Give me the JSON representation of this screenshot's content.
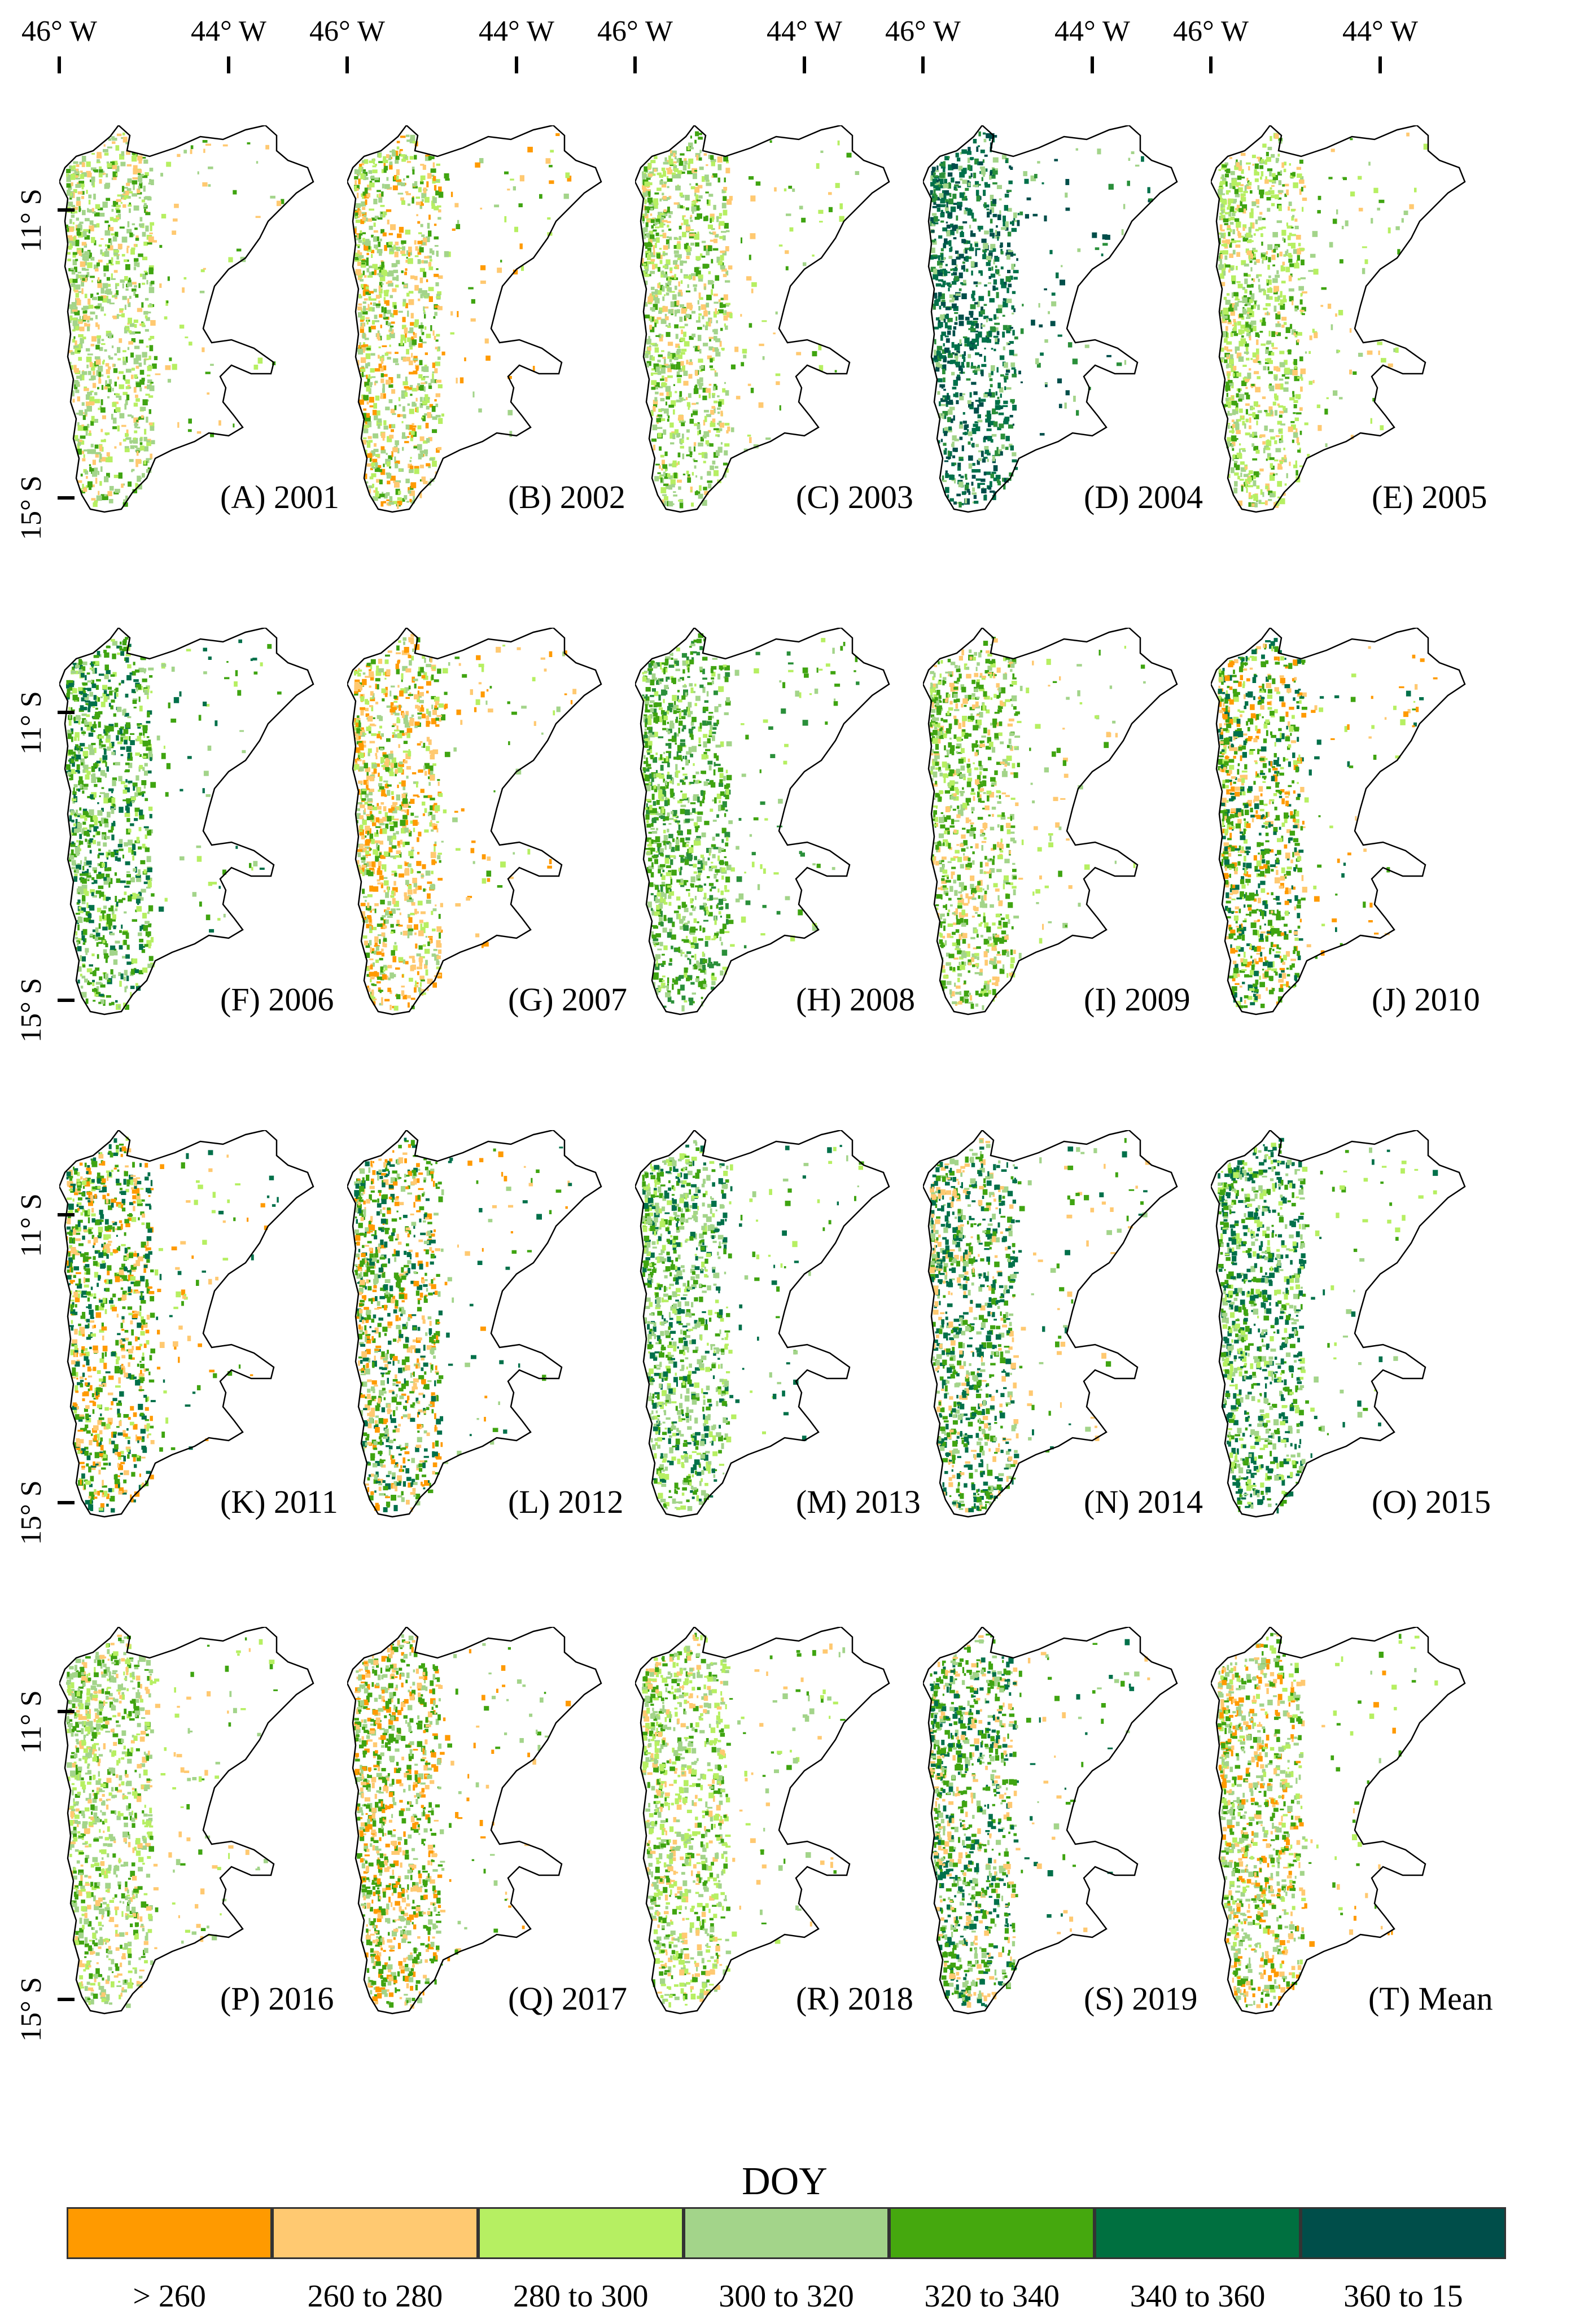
{
  "figure": {
    "top_axis_ticks": [
      "46° W",
      "44° W"
    ],
    "left_axis_ticks": [
      "11° S",
      "15° S"
    ],
    "panels": [
      {
        "label": "(A) 2001",
        "palette": [
          "#a3d48a",
          "#b6ef62",
          "#ffc971",
          "#3fa411"
        ]
      },
      {
        "label": "(B) 2002",
        "palette": [
          "#a3d48a",
          "#b6ef62",
          "#ffc971",
          "#3fa411",
          "#ff9a00"
        ]
      },
      {
        "label": "(C) 2003",
        "palette": [
          "#a3d48a",
          "#b6ef62",
          "#3fa411",
          "#ffc971"
        ]
      },
      {
        "label": "(D) 2004",
        "palette": [
          "#00704a",
          "#004e4a",
          "#2a8f3a",
          "#a3d48a"
        ]
      },
      {
        "label": "(E) 2005",
        "palette": [
          "#b6ef62",
          "#a3d48a",
          "#3fa411",
          "#ffc971"
        ]
      },
      {
        "label": "(F) 2006",
        "palette": [
          "#3fa411",
          "#00704a",
          "#a3d48a",
          "#b6ef62"
        ]
      },
      {
        "label": "(G) 2007",
        "palette": [
          "#ffc971",
          "#ff9a00",
          "#a3d48a",
          "#b6ef62",
          "#3fa411"
        ]
      },
      {
        "label": "(H) 2008",
        "palette": [
          "#3fa411",
          "#2a8f3a",
          "#a3d48a",
          "#b6ef62"
        ]
      },
      {
        "label": "(I) 2009",
        "palette": [
          "#3fa411",
          "#a3d48a",
          "#b6ef62",
          "#ffc971"
        ]
      },
      {
        "label": "(J) 2010",
        "palette": [
          "#3fa411",
          "#00704a",
          "#b6ef62",
          "#ffc971",
          "#ff9a00"
        ]
      },
      {
        "label": "(K) 2011",
        "palette": [
          "#3fa411",
          "#00704a",
          "#ffc971",
          "#ff9a00",
          "#b6ef62"
        ]
      },
      {
        "label": "(L) 2012",
        "palette": [
          "#3fa411",
          "#00704a",
          "#ff9a00",
          "#ffc971",
          "#a3d48a"
        ]
      },
      {
        "label": "(M) 2013",
        "palette": [
          "#a3d48a",
          "#3fa411",
          "#b6ef62",
          "#00704a"
        ]
      },
      {
        "label": "(N) 2014",
        "palette": [
          "#00704a",
          "#3fa411",
          "#a3d48a",
          "#ffc971"
        ]
      },
      {
        "label": "(O) 2015",
        "palette": [
          "#00704a",
          "#3fa411",
          "#a3d48a",
          "#b6ef62"
        ]
      },
      {
        "label": "(P) 2016",
        "palette": [
          "#a3d48a",
          "#b6ef62",
          "#3fa411",
          "#ffc971"
        ]
      },
      {
        "label": "(Q) 2017",
        "palette": [
          "#3fa411",
          "#a3d48a",
          "#ffc971",
          "#ff9a00"
        ]
      },
      {
        "label": "(R) 2018",
        "palette": [
          "#b6ef62",
          "#a3d48a",
          "#3fa411",
          "#ffc971"
        ]
      },
      {
        "label": "(S) 2019",
        "palette": [
          "#3fa411",
          "#00704a",
          "#a3d48a",
          "#ffc971"
        ]
      },
      {
        "label": "(T) Mean",
        "palette": [
          "#a3d48a",
          "#3fa411",
          "#ffc971",
          "#ff9a00",
          "#b6ef62"
        ]
      }
    ],
    "legend": {
      "title": "DOY",
      "classes": [
        {
          "label": "> 260",
          "color": "#ff9a00"
        },
        {
          "label": "260 to 280",
          "color": "#ffc971"
        },
        {
          "label": "280 to 300",
          "color": "#b6ef62"
        },
        {
          "label": "300 to 320",
          "color": "#a3d48a"
        },
        {
          "label": "320 to 340",
          "color": "#45a80e"
        },
        {
          "label": "340 to 360",
          "color": "#007040"
        },
        {
          "label": "360  to 15",
          "color": "#004e4a"
        }
      ]
    }
  }
}
